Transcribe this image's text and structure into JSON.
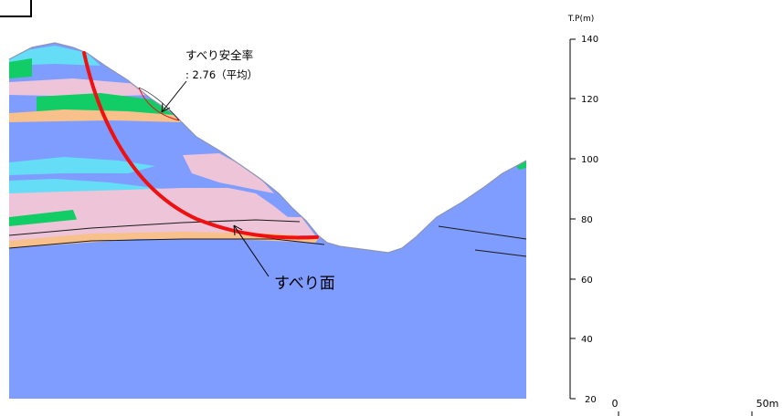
{
  "annotations": {
    "safety_factor_title": "すべり安全率",
    "safety_factor_value": ": 2.76（平均）",
    "slip_surface_label": "すべり面"
  },
  "elevation_axis": {
    "unit_label": "T.P(m)",
    "ticks": [
      "140",
      "120",
      "100",
      "80",
      "60",
      "40",
      "20"
    ]
  },
  "scale_bar": {
    "start_label": "0",
    "end_label": "50m"
  },
  "colors": {
    "rock_blue": "#7f9cff",
    "layer_pink": "#eec4d8",
    "layer_cyan": "#66ddf6",
    "layer_green": "#12cc66",
    "layer_orange": "#f8c08a",
    "slip_surface_red": "#ee1111"
  }
}
